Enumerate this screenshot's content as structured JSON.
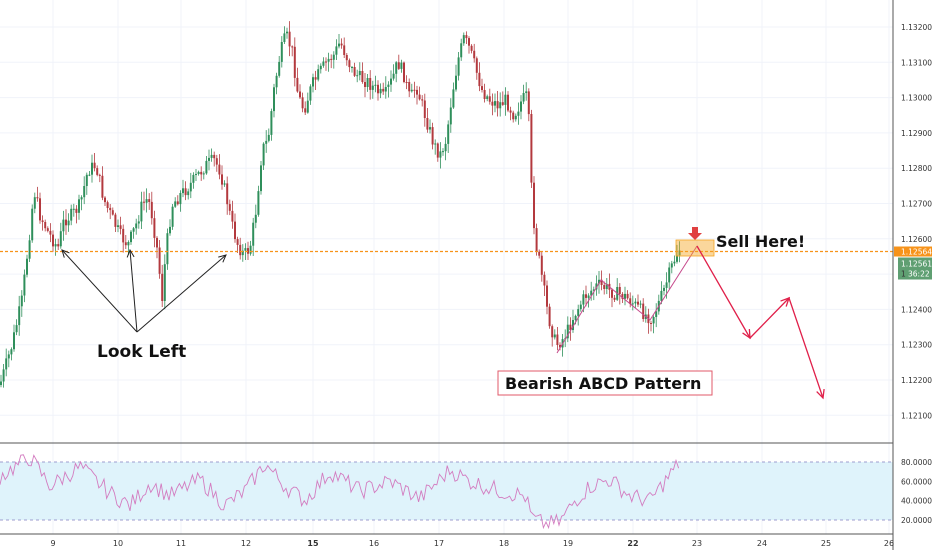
{
  "chart_data": {
    "type": "candlestick",
    "instrument_price_scale": "1.xxxxx",
    "price_axis": {
      "ticks": [
        "1.13200",
        "1.13100",
        "1.13000",
        "1.12900",
        "1.12800",
        "1.12700",
        "1.12600",
        "1.12500",
        "1.12400",
        "1.12300",
        "1.12200",
        "1.12100"
      ],
      "range": [
        1.1205,
        1.1325
      ]
    },
    "time_axis": {
      "ticks": [
        {
          "label": "9",
          "bold": false
        },
        {
          "label": "10",
          "bold": false
        },
        {
          "label": "11",
          "bold": false
        },
        {
          "label": "12",
          "bold": false
        },
        {
          "label": "15",
          "bold": true
        },
        {
          "label": "16",
          "bold": false
        },
        {
          "label": "17",
          "bold": false
        },
        {
          "label": "18",
          "bold": false
        },
        {
          "label": "19",
          "bold": false
        },
        {
          "label": "22",
          "bold": true
        },
        {
          "label": "23",
          "bold": false
        },
        {
          "label": "24",
          "bold": false
        },
        {
          "label": "25",
          "bold": false
        },
        {
          "label": "26",
          "bold": false
        }
      ]
    },
    "price_labels": {
      "level": "1.12564",
      "last": "1.12561",
      "countdown": "36:22",
      "countdown_prefix": "1",
      "level_color": "#f7931a",
      "last_color": "#5f9f72"
    },
    "horizontal_level": 1.12564,
    "rsi": {
      "ticks": [
        "80.0000",
        "60.0000",
        "40.0000",
        "20.0000"
      ],
      "band": [
        20,
        80
      ],
      "band_color": "#dff3fb",
      "line_color": "#d37cc0"
    },
    "annotations": {
      "look_left": "Look Left",
      "sell_here": "Sell Here!",
      "pattern": "Bearish ABCD Pattern"
    },
    "colors": {
      "up": "#2f8f5b",
      "down": "#b3393e",
      "projection": "#e0204a",
      "abcd": "#c64a8c"
    }
  }
}
